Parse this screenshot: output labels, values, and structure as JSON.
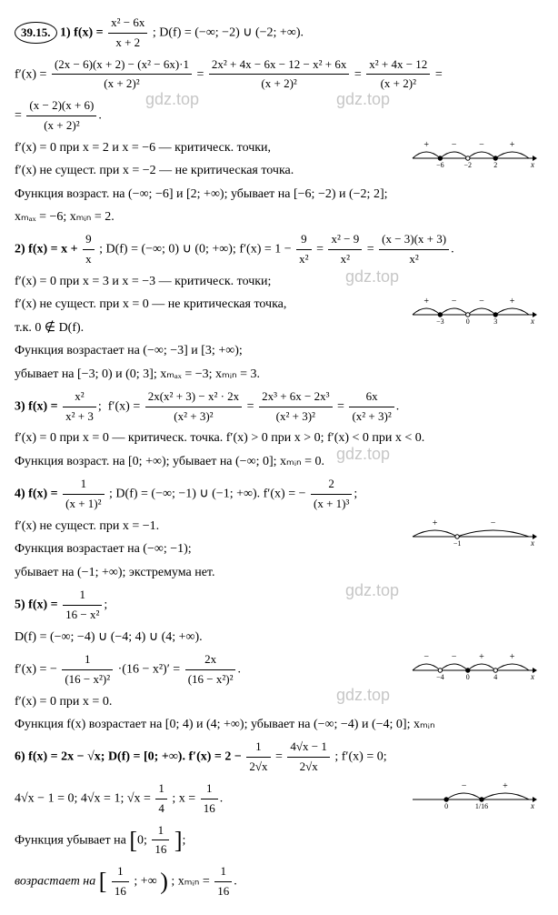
{
  "problem_label": "39.15.",
  "watermark_text": "gdz.top",
  "watermark_color": "#999999",
  "background": "#ffffff",
  "text_color": "#000000",
  "items": {
    "p1": {
      "header": "1)  f(x) =",
      "f_num": "x² − 6x",
      "f_den": "x + 2",
      "domain": ";  D(f) = (−∞; −2) ∪ (−2; +∞).",
      "d1_a_num": "(2x − 6)(x + 2) − (x² − 6x)·1",
      "d1_a_den": "(x + 2)²",
      "d1_b_num": "2x² + 4x − 6x − 12 − x² + 6x",
      "d1_b_den": "(x + 2)²",
      "d1_c_num": "x² + 4x − 12",
      "d1_c_den": "(x + 2)²",
      "d1_d_num": "(x − 2)(x + 6)",
      "d1_d_den": "(x + 2)²",
      "crit1": "f′(x) = 0 при x = 2 и x = −6 — критическ. точки,",
      "crit2": "f′(x) не сущест. при x = −2 — не критическая точка.",
      "mono": "Функция возраст. на (−∞; −6] и [2; +∞); убывает на [−6; −2) и (−2; 2];",
      "extr": "xₘₐₓ = −6; xₘᵢₙ = 2.",
      "nl": {
        "pts": [
          "−6",
          "−2",
          "2"
        ],
        "signs": [
          "+",
          "−",
          "−",
          "+"
        ],
        "open": [
          false,
          true,
          false
        ]
      }
    },
    "p2": {
      "header": "2)  f(x) = x +",
      "f_num": "9",
      "f_den": "x",
      "domain": ";  D(f) = (−∞; 0) ∪ (0; +∞);",
      "deriv_pre": "f′(x) = 1 −",
      "d_a_num": "9",
      "d_a_den": "x²",
      "d_b_num": "x² − 9",
      "d_b_den": "x²",
      "d_c_num": "(x − 3)(x + 3)",
      "d_c_den": "x²",
      "crit1": "f′(x) = 0 при x = 3 и x = −3 — критическ. точки;",
      "crit2": "f′(x) не сущест. при x = 0 — не критическая точка,",
      "note": "т.к. 0 ∉ D(f).",
      "mono": "Функция возрастает на (−∞; −3] и [3; +∞);",
      "mono2": "убывает на [−3; 0) и (0; 3]; xₘₐₓ = −3; xₘᵢₙ = 3.",
      "nl": {
        "pts": [
          "−3",
          "0",
          "3"
        ],
        "signs": [
          "+",
          "−",
          "−",
          "+"
        ],
        "open": [
          false,
          true,
          false
        ]
      }
    },
    "p3": {
      "header": "3)  f(x) =",
      "f_num": "x²",
      "f_den": "x² + 3",
      "d_a_num": "2x(x² + 3) − x² · 2x",
      "d_a_den": "(x² + 3)²",
      "d_b_num": "2x³ + 6x − 2x³",
      "d_b_den": "(x² + 3)²",
      "d_c_num": "6x",
      "d_c_den": "(x² + 3)²",
      "crit": "f′(x) = 0 при x = 0 — критическ. точка. f′(x) > 0 при x > 0; f′(x) < 0 при x < 0.",
      "mono": "Функция возраст. на [0; +∞); убывает на (−∞; 0]; xₘᵢₙ = 0."
    },
    "p4": {
      "header": "4)  f(x) =",
      "f_num": "1",
      "f_den": "(x + 1)²",
      "domain": ";  D(f) = (−∞; −1) ∪ (−1; +∞).",
      "d_pre": "f′(x) = −",
      "d_num": "2",
      "d_den": "(x + 1)³",
      "crit": "f′(x) не сущест. при x = −1.",
      "mono1": "Функция возрастает на (−∞; −1);",
      "mono2": "убывает на (−1; +∞); экстремума нет.",
      "nl": {
        "pts": [
          "−1"
        ],
        "signs": [
          "+",
          "−"
        ],
        "open": [
          true
        ]
      }
    },
    "p5": {
      "header": "5)  f(x) =",
      "f_num": "1",
      "f_den": "16 − x²",
      "domain": "D(f) = (−∞; −4) ∪ (−4; 4) ∪ (4; +∞).",
      "d_a_pre": "f′(x) = −",
      "d_a_num": "1",
      "d_a_den": "(16 − x²)²",
      "d_a_post": "·(16 − x²)′ =",
      "d_b_num": "2x",
      "d_b_den": "(16 − x²)²",
      "crit": "f′(x) = 0 при x = 0.",
      "mono": "Функция f(x) возрастает на [0; 4) и (4; +∞); убывает на (−∞; −4) и (−4; 0]; xₘᵢₙ",
      "nl": {
        "pts": [
          "−4",
          "0",
          "4"
        ],
        "signs": [
          "−",
          "−",
          "+",
          "+"
        ],
        "open": [
          true,
          false,
          true
        ]
      }
    },
    "p6": {
      "header": "6)  f(x) = 2x − √x;  D(f) = [0; +∞).  f′(x) = 2 −",
      "d_a_num": "1",
      "d_a_den": "2√x",
      "d_b_num": "4√x − 1",
      "d_b_den": "2√x",
      "d_post": ";  f′(x) = 0;",
      "solve": "4√x − 1 = 0;   4√x = 1;   √x =",
      "s_a_num": "1",
      "s_a_den": "4",
      "s_mid": ";   x =",
      "s_b_num": "1",
      "s_b_den": "16",
      "mono1": "Функция убывает на",
      "mono1_int": "0;",
      "mono1_frac_num": "1",
      "mono1_frac_den": "16",
      "mono2": "возрастает на",
      "mono2_frac_num": "1",
      "mono2_frac_den": "16",
      "mono2_post": "; +∞",
      "extr": ";   xₘᵢₙ =",
      "extr_num": "1",
      "extr_den": "16",
      "nl": {
        "pts": [
          "0",
          "1/16"
        ],
        "signs": [
          "",
          "−",
          "+"
        ],
        "open": [
          false,
          false
        ]
      }
    }
  }
}
